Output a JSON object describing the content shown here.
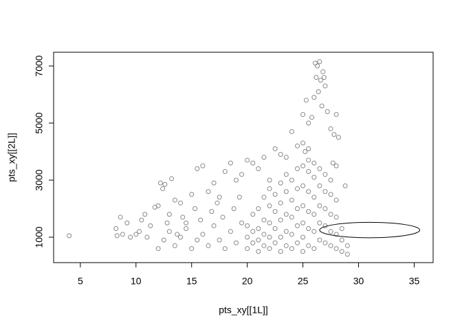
{
  "chart_data": {
    "type": "scatter",
    "x_label": "pts_xy[[1L]]",
    "y_label": "pts_xy[[2L]]",
    "color": "#888888",
    "x": [
      4,
      8.2,
      8.3,
      8.6,
      8.8,
      9.2,
      9.5,
      10,
      10.3,
      10.5,
      10.8,
      11,
      11.3,
      11.7,
      12,
      12.2,
      12.4,
      12.6,
      13,
      13.2,
      13.5,
      14,
      14.5,
      15,
      15.5,
      16,
      16.5,
      17,
      17.5,
      18,
      18.5,
      19,
      19.5,
      20,
      20.5,
      21,
      21.5,
      22,
      22.5,
      23,
      23.5,
      24,
      24.5,
      25,
      25.2,
      25.5,
      25.8,
      26,
      26.2,
      26.3,
      26.5,
      26.6,
      26.8,
      27,
      26.4,
      26.7,
      27.2,
      27.5,
      27.8,
      28,
      28.2,
      25.5,
      25,
      25.3,
      26.1,
      26.9,
      12,
      12.5,
      13,
      13.5,
      14,
      14.5,
      15,
      15.5,
      16,
      16.5,
      17,
      17.5,
      18,
      18.5,
      19,
      19.5,
      12.8,
      14.2,
      15.8,
      16.8,
      17.8,
      18.8,
      19.3,
      17.3,
      15.3,
      13.7,
      20,
      20,
      20,
      20.5,
      20.5,
      20.5,
      21,
      21,
      21,
      21,
      21.5,
      21.5,
      21.5,
      21.5,
      22,
      22,
      22,
      22,
      22,
      22.5,
      22.5,
      22.5,
      22.5,
      23,
      23,
      23,
      23,
      23,
      23.5,
      23.5,
      23.5,
      23.5,
      23.5,
      24,
      24,
      24,
      24,
      24,
      24.5,
      24.5,
      24.5,
      24.5,
      24.5,
      25,
      25,
      25,
      25,
      25,
      25,
      25.5,
      25.5,
      25.5,
      25.5,
      25.5,
      25.5,
      26,
      26,
      26,
      26,
      26,
      26,
      26.5,
      26.5,
      26.5,
      26.5,
      26.5,
      27,
      27,
      27,
      27,
      27,
      27.5,
      27.5,
      27.5,
      27.5,
      27.5,
      28,
      28,
      28,
      28,
      28,
      28.5,
      28.5,
      28.5,
      29,
      29,
      28.8,
      27.7
    ],
    "values": [
      1050,
      1300,
      1050,
      1700,
      1100,
      1500,
      1000,
      1100,
      1200,
      1600,
      1800,
      1000,
      1400,
      2050,
      2100,
      2900,
      2700,
      2850,
      1800,
      3050,
      2300,
      2200,
      1500,
      2500,
      3400,
      3500,
      2600,
      2900,
      2400,
      3300,
      3600,
      3000,
      3200,
      3700,
      3600,
      3400,
      3800,
      3000,
      4100,
      3900,
      3800,
      4700,
      4200,
      4300,
      4000,
      4100,
      5200,
      5900,
      6600,
      7000,
      7150,
      6500,
      6800,
      6300,
      6100,
      5600,
      5400,
      4800,
      4600,
      5300,
      4500,
      5000,
      5300,
      5800,
      7100,
      6600,
      600,
      900,
      1200,
      700,
      1000,
      1300,
      600,
      900,
      1100,
      700,
      1400,
      900,
      600,
      1200,
      800,
      1500,
      1500,
      1700,
      1600,
      1900,
      1700,
      2000,
      2400,
      2200,
      2000,
      1100,
      600,
      1000,
      1400,
      800,
      1200,
      1800,
      500,
      900,
      1300,
      2000,
      700,
      1100,
      1600,
      2400,
      600,
      1000,
      1500,
      2100,
      2700,
      800,
      1300,
      1900,
      2500,
      500,
      1000,
      1600,
      2200,
      2900,
      700,
      1200,
      1800,
      2600,
      3200,
      600,
      1100,
      1700,
      2300,
      3000,
      800,
      1400,
      2000,
      2700,
      3400,
      500,
      1000,
      1500,
      2100,
      2800,
      3500,
      700,
      1300,
      1900,
      2600,
      3300,
      3700,
      600,
      1200,
      1800,
      2400,
      3100,
      3600,
      900,
      1500,
      2100,
      2800,
      3400,
      800,
      1400,
      2000,
      2600,
      3200,
      700,
      1200,
      1800,
      2500,
      3000,
      600,
      1100,
      1700,
      2300,
      3500,
      500,
      900,
      1300,
      400,
      700,
      2800,
      3600
    ],
    "ellipse": {
      "cx": 31,
      "cy": 1250,
      "rx": 4.5,
      "ry": 270
    },
    "xlim": [
      2.6,
      36.7
    ],
    "ylim": [
      108,
      7482
    ],
    "xticks": [
      5,
      10,
      15,
      20,
      25,
      30,
      35
    ],
    "yticks": [
      1000,
      3000,
      5000,
      7000
    ]
  }
}
